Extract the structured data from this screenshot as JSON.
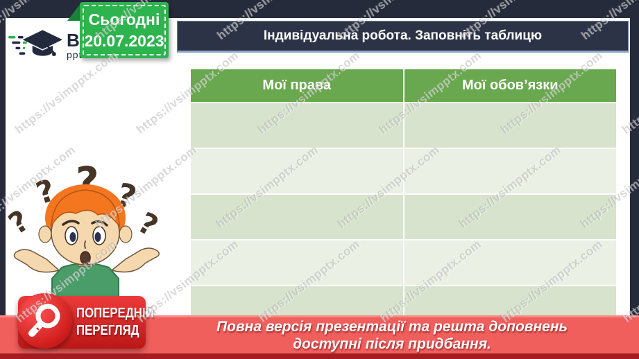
{
  "watermark": {
    "text": "https://vsimpptx.com"
  },
  "logo": {
    "brand": "ВСІМ",
    "sub": "pptx"
  },
  "date_badge": {
    "label": "Сьогодні",
    "date": "20.07.2023"
  },
  "title_bar": {
    "text": "Індивідуальна робота. Заповніть таблицю"
  },
  "table": {
    "columns": [
      "Мої права",
      "Мої обов’язки"
    ],
    "rows": [
      [
        "",
        ""
      ],
      [
        "",
        ""
      ],
      [
        "",
        ""
      ],
      [
        "",
        ""
      ],
      [
        "",
        ""
      ]
    ]
  },
  "illustration": {
    "name": "confused-boy",
    "question_mark": "?"
  },
  "preview_badge": {
    "line1": "ПОПЕРЕДНІЙ",
    "line2": "ПЕРЕГЛЯД"
  },
  "footer": {
    "line1": "Повна версія презентації та решта доповнень",
    "line2": "доступні після придбання."
  },
  "colors": {
    "frame_navy": "#262b3c",
    "title_navy": "#2d3347",
    "badge_green": "#2db44e",
    "badge_fold_green": "#17843a",
    "table_header_green": "#69a84e",
    "row_dark": "#d7e3cc",
    "row_light": "#eaf0e4",
    "footer_red": "#f15f5d",
    "footer_dark_red": "#a51d22",
    "preview_red": "#cf1d1d"
  }
}
